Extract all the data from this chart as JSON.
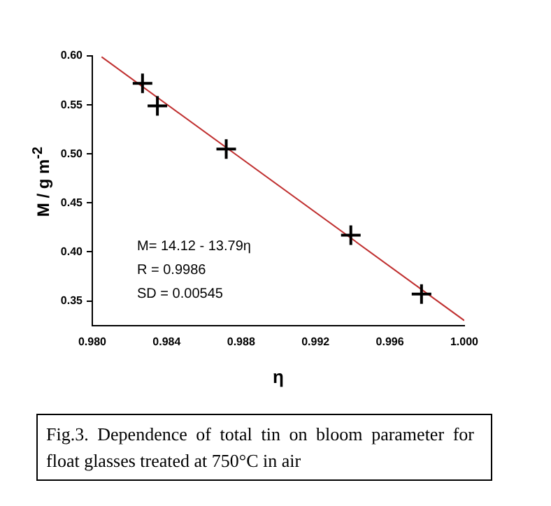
{
  "chart_data": {
    "type": "scatter",
    "xlabel": "η",
    "ylabel": "M / g m$^{-2}$",
    "x": [
      0.9827,
      0.9835,
      0.9872,
      0.9939,
      0.9977
    ],
    "series": [
      {
        "type": "scatter",
        "color": "#000000",
        "marker": "cross",
        "values": [
          0.572,
          0.549,
          0.505,
          0.417,
          0.357
        ]
      },
      {
        "type": "line",
        "color": "#c03030",
        "marker": "none",
        "x": [
          0.9805,
          1.0
        ],
        "values": [
          0.599,
          0.33
        ]
      }
    ],
    "xlim": [
      0.98,
      1.0
    ],
    "xticks": [
      {
        "value": 0.98,
        "label": "0.980"
      },
      0.984,
      0.988,
      0.992,
      0.996,
      {
        "value": 1.0,
        "label": "1.000"
      }
    ],
    "ylim": [
      0.325,
      0.6
    ],
    "yticks": [
      {
        "value": 0.6,
        "label": "0.60"
      },
      0.55,
      {
        "value": 0.5,
        "label": "0.50"
      },
      0.45,
      {
        "value": 0.4,
        "label": "0.40"
      },
      0.35
    ],
    "grid": false,
    "legend": false,
    "annotations": [
      "M= 14.12 - 13.79η",
      "R = 0.9986",
      "SD = 0.00545",
      "Fig.3. Dependence of total tin on bloom parameter for float glasses treated at 750°C in air"
    ]
  }
}
